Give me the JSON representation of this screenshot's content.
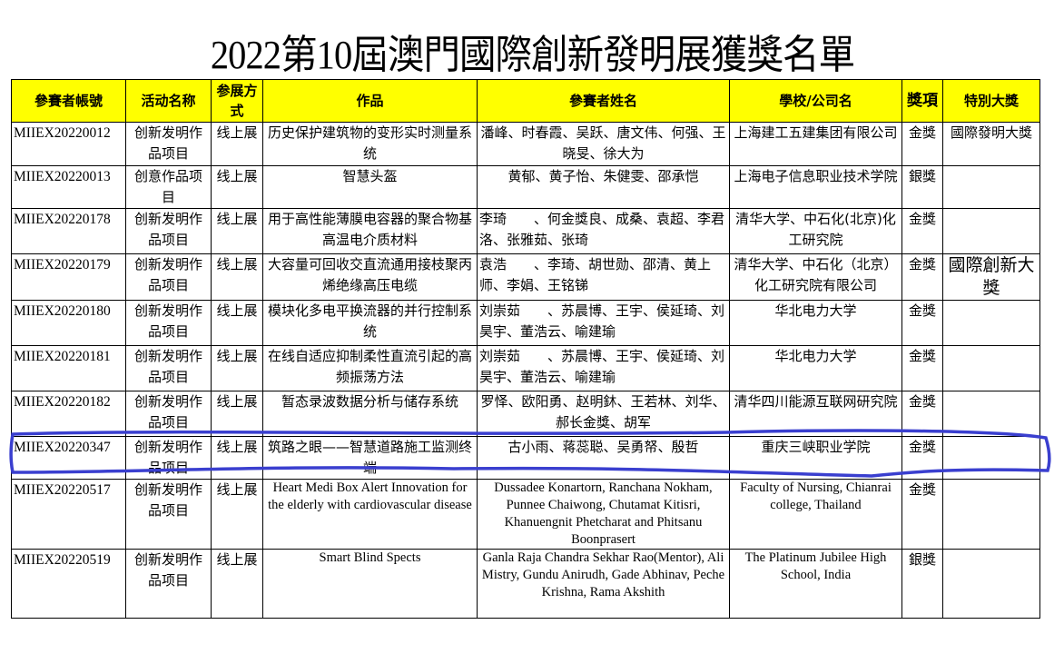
{
  "title": "2022第10屆澳門國際創新發明展獲獎名單",
  "headers": [
    "參賽者帳號",
    "活动名称",
    "参展方式",
    "作品",
    "參賽者姓名",
    "學校/公司名",
    "獎項",
    "特別大獎"
  ],
  "rows": [
    {
      "id": "MIIEX20220012",
      "activity": "创新发明作品项目",
      "mode": "线上展",
      "work": "历史保护建筑物的变形实时测量系统",
      "names": "潘峰、时春霞、吴跃、唐文伟、何强、王晓旻、徐大为",
      "org": "上海建工五建集团有限公司",
      "award": "金獎",
      "special": "國際發明大獎"
    },
    {
      "id": "MIIEX20220013",
      "activity": "创意作品项目",
      "mode": "线上展",
      "work": "智慧头盔",
      "names": "黄郁、黄子怡、朱健雯、邵承恺",
      "org": "上海电子信息职业技术学院",
      "award": "銀獎",
      "special": ""
    },
    {
      "id": "MIIEX20220178",
      "activity": "创新发明作品项目",
      "mode": "线上展",
      "work": "用于高性能薄膜电容器的聚合物基高温电介质材料",
      "names": "李琦　　、何金獎良、成桑、袁超、李君洛、张雅茹、张琦",
      "org": "清华大学、中石化(北京)化工研究院",
      "award": "金獎",
      "special": ""
    },
    {
      "id": "MIIEX20220179",
      "activity": "创新发明作品项目",
      "mode": "线上展",
      "work": "大容量可回收交直流通用接枝聚丙烯绝缘高压电缆",
      "names": "袁浩　　、李琦、胡世勋、邵清、黄上师、李娟、王铭锑",
      "org": "清华大学、中石化（北京）化工研究院有限公司",
      "award": "金獎",
      "special": "國際創新大獎"
    },
    {
      "id": "MIIEX20220180",
      "activity": "创新发明作品项目",
      "mode": "线上展",
      "work": "模块化多电平换流器的并行控制系统",
      "names": "刘崇茹　　、苏晨博、王宇、侯延琦、刘昊宇、董浩云、喻建瑜",
      "org": "华北电力大学",
      "award": "金獎",
      "special": ""
    },
    {
      "id": "MIIEX20220181",
      "activity": "创新发明作品项目",
      "mode": "线上展",
      "work": "在线自适应抑制柔性直流引起的高频振荡方法",
      "names": "刘崇茹　　、苏晨博、王宇、侯延琦、刘昊宇、董浩云、喻建瑜",
      "org": "华北电力大学",
      "award": "金獎",
      "special": ""
    },
    {
      "id": "MIIEX20220182",
      "activity": "创新发明作品项目",
      "mode": "线上展",
      "work": "暂态录波数据分析与储存系统",
      "names": "罗怿、欧阳勇、赵明鈢、王若林、刘华、郝长金獎、胡军",
      "org": "清华四川能源互联网研究院",
      "award": "金獎",
      "special": ""
    },
    {
      "id": "MIIEX20220347",
      "activity": "创新发明作品项目",
      "mode": "线上展",
      "work": "筑路之眼——智慧道路施工监测终端",
      "names": "古小雨、蒋蕊聪、吴勇帑、殷哲",
      "org": "重庆三峡职业学院",
      "award": "金獎",
      "special": ""
    },
    {
      "id": "MIIEX20220517",
      "activity": "创新发明作品项目",
      "mode": "线上展",
      "work": "Heart Medi Box Alert Innovation for the elderly with cardiovascular disease",
      "names": "Dussadee Konartorn, Ranchana Nokham, Punnee Chaiwong, Chutamat Kitisri, Khanuengnit Phetcharat and Phitsanu Boonprasert",
      "org": "Faculty of Nursing, Chianrai college, Thailand",
      "award": "金獎",
      "special": ""
    },
    {
      "id": "MIIEX20220519",
      "activity": "创新发明作品项目",
      "mode": "线上展",
      "work": "Smart Blind Spects",
      "names": "Ganla Raja Chandra Sekhar Rao(Mentor), Ali Mistry, Gundu Anirudh, Gade Abhinav, Peche Krishna, Rama Akshith",
      "org": "The Platinum Jubilee High School, India",
      "award": "銀獎",
      "special": ""
    }
  ],
  "highlight": {
    "row_id": "MIIEX20220347",
    "color": "#3a3fcf"
  },
  "colors": {
    "header_bg": "#ffff00"
  }
}
